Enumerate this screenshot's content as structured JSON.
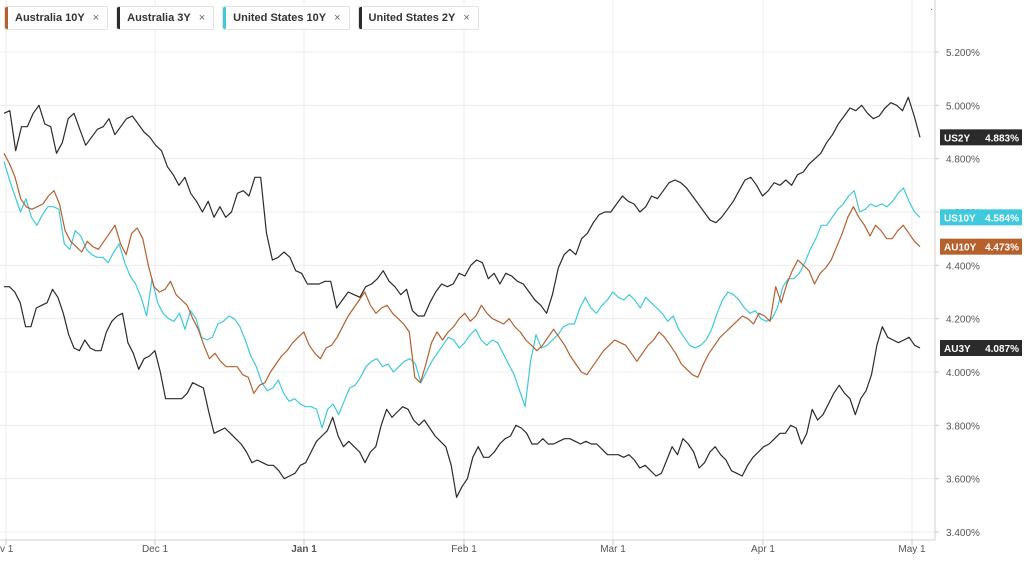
{
  "legend": [
    {
      "label": "Australia 10Y",
      "close": "×",
      "color": "#b5602d"
    },
    {
      "label": "Australia 3Y",
      "close": "×",
      "color": "#2b2b2b"
    },
    {
      "label": "United States 10Y",
      "close": "×",
      "color": "#3ec9dc"
    },
    {
      "label": "United States 2Y",
      "close": "×",
      "color": "#2b2b2b"
    }
  ],
  "chart_data": {
    "type": "line",
    "title": "",
    "xlabel": "",
    "ylabel": "",
    "x_ticks": [
      "v 1",
      "Dec 1",
      "Jan 1",
      "Feb 1",
      "Mar 1",
      "Apr 1",
      "May 1"
    ],
    "y_ticks": [
      "5.200%",
      "5.000%",
      "4.800%",
      "4.600%",
      "4.400%",
      "4.200%",
      "4.000%",
      "3.800%",
      "3.600%",
      "3.400%"
    ],
    "ylim": [
      3.4,
      5.4
    ],
    "x_range": [
      "Nov 1",
      "May 1"
    ],
    "grid": true,
    "legend_position": "top-left",
    "series": [
      {
        "name": "United States 2Y",
        "badge": "US2Y",
        "last_label": "4.883%",
        "color": "#2b2b2b",
        "values": [
          4.97,
          4.98,
          4.83,
          4.92,
          4.92,
          4.97,
          5.0,
          4.93,
          4.92,
          4.82,
          4.86,
          4.95,
          4.97,
          4.91,
          4.85,
          4.88,
          4.91,
          4.92,
          4.95,
          4.89,
          4.92,
          4.95,
          4.96,
          4.93,
          4.9,
          4.88,
          4.85,
          4.83,
          4.77,
          4.74,
          4.7,
          4.73,
          4.67,
          4.64,
          4.6,
          4.64,
          4.58,
          4.62,
          4.58,
          4.6,
          4.67,
          4.68,
          4.66,
          4.73,
          4.73,
          4.52,
          4.42,
          4.43,
          4.45,
          4.43,
          4.38,
          4.37,
          4.33,
          4.33,
          4.33,
          4.34,
          4.34,
          4.24,
          4.27,
          4.3,
          4.29,
          4.28,
          4.32,
          4.33,
          4.35,
          4.38,
          4.34,
          4.32,
          4.29,
          4.31,
          4.23,
          4.21,
          4.21,
          4.26,
          4.3,
          4.33,
          4.32,
          4.33,
          4.37,
          4.36,
          4.4,
          4.42,
          4.41,
          4.35,
          4.37,
          4.33,
          4.37,
          4.36,
          4.34,
          4.33,
          4.3,
          4.27,
          4.25,
          4.22,
          4.29,
          4.39,
          4.44,
          4.46,
          4.44,
          4.5,
          4.52,
          4.56,
          4.59,
          4.6,
          4.6,
          4.63,
          4.66,
          4.64,
          4.63,
          4.6,
          4.62,
          4.66,
          4.65,
          4.68,
          4.71,
          4.72,
          4.71,
          4.69,
          4.66,
          4.63,
          4.6,
          4.57,
          4.56,
          4.58,
          4.61,
          4.64,
          4.68,
          4.72,
          4.73,
          4.7,
          4.66,
          4.68,
          4.71,
          4.7,
          4.72,
          4.7,
          4.74,
          4.75,
          4.78,
          4.8,
          4.82,
          4.86,
          4.89,
          4.93,
          4.96,
          4.99,
          4.98,
          5.0,
          4.97,
          4.95,
          4.96,
          4.99,
          5.01,
          5.0,
          4.98,
          5.03,
          4.96,
          4.88
        ]
      },
      {
        "name": "United States 10Y",
        "badge": "US10Y",
        "last_label": "4.584%",
        "color": "#3ec9dc",
        "values": [
          4.79,
          4.72,
          4.66,
          4.6,
          4.65,
          4.58,
          4.55,
          4.59,
          4.62,
          4.62,
          4.61,
          4.48,
          4.46,
          4.53,
          4.51,
          4.46,
          4.44,
          4.43,
          4.43,
          4.41,
          4.45,
          4.48,
          4.41,
          4.36,
          4.33,
          4.28,
          4.21,
          4.35,
          4.26,
          4.22,
          4.2,
          4.19,
          4.22,
          4.16,
          4.23,
          4.2,
          4.13,
          4.12,
          4.13,
          4.18,
          4.19,
          4.21,
          4.2,
          4.17,
          4.12,
          4.06,
          4.02,
          3.96,
          3.93,
          3.94,
          3.97,
          3.92,
          3.89,
          3.9,
          3.88,
          3.87,
          3.87,
          3.86,
          3.79,
          3.86,
          3.88,
          3.84,
          3.89,
          3.94,
          3.95,
          3.98,
          4.02,
          4.04,
          4.05,
          4.02,
          4.03,
          4.0,
          4.02,
          4.04,
          4.05,
          4.03,
          3.96,
          4.0,
          4.04,
          4.07,
          4.1,
          4.13,
          4.12,
          4.09,
          4.11,
          4.14,
          4.16,
          4.12,
          4.1,
          4.12,
          4.11,
          4.07,
          4.03,
          3.99,
          3.93,
          3.87,
          4.04,
          4.14,
          4.09,
          4.1,
          4.12,
          4.14,
          4.17,
          4.18,
          4.18,
          4.24,
          4.28,
          4.24,
          4.22,
          4.25,
          4.27,
          4.3,
          4.28,
          4.27,
          4.29,
          4.27,
          4.24,
          4.28,
          4.26,
          4.24,
          4.22,
          4.19,
          4.21,
          4.16,
          4.13,
          4.1,
          4.09,
          4.1,
          4.12,
          4.16,
          4.22,
          4.27,
          4.3,
          4.29,
          4.27,
          4.24,
          4.22,
          4.23,
          4.2,
          4.19,
          4.2,
          4.24,
          4.32,
          4.35,
          4.35,
          4.37,
          4.41,
          4.46,
          4.5,
          4.55,
          4.55,
          4.58,
          4.61,
          4.63,
          4.66,
          4.68,
          4.6,
          4.61,
          4.63,
          4.62,
          4.63,
          4.62,
          4.64,
          4.67,
          4.69,
          4.64,
          4.6,
          4.58
        ]
      },
      {
        "name": "Australia 10Y",
        "badge": "AU10Y",
        "last_label": "4.473%",
        "color": "#b5602d",
        "values": [
          4.82,
          4.78,
          4.73,
          4.65,
          4.62,
          4.61,
          4.62,
          4.63,
          4.66,
          4.68,
          4.63,
          4.53,
          4.49,
          4.47,
          4.45,
          4.49,
          4.47,
          4.46,
          4.49,
          4.52,
          4.55,
          4.48,
          4.44,
          4.52,
          4.54,
          4.5,
          4.4,
          4.32,
          4.3,
          4.31,
          4.34,
          4.29,
          4.27,
          4.25,
          4.2,
          4.16,
          4.1,
          4.05,
          4.07,
          4.04,
          4.02,
          4.02,
          4.02,
          3.99,
          3.98,
          3.92,
          3.95,
          3.96,
          4.0,
          4.03,
          4.06,
          4.08,
          4.11,
          4.13,
          4.15,
          4.1,
          4.07,
          4.05,
          4.09,
          4.1,
          4.13,
          4.17,
          4.21,
          4.24,
          4.27,
          4.3,
          4.25,
          4.22,
          4.24,
          4.25,
          4.22,
          4.2,
          4.18,
          4.15,
          3.98,
          3.96,
          4.03,
          4.11,
          4.15,
          4.12,
          4.15,
          4.17,
          4.2,
          4.22,
          4.19,
          4.21,
          4.25,
          4.22,
          4.2,
          4.19,
          4.18,
          4.2,
          4.17,
          4.15,
          4.12,
          4.1,
          4.08,
          4.1,
          4.13,
          4.16,
          4.13,
          4.1,
          4.06,
          4.03,
          4.0,
          3.99,
          4.02,
          4.05,
          4.08,
          4.1,
          4.12,
          4.11,
          4.1,
          4.07,
          4.04,
          4.07,
          4.1,
          4.12,
          4.15,
          4.13,
          4.1,
          4.07,
          4.03,
          4.01,
          3.99,
          3.98,
          4.03,
          4.07,
          4.1,
          4.13,
          4.15,
          4.17,
          4.19,
          4.21,
          4.2,
          4.18,
          4.22,
          4.21,
          4.19,
          4.32,
          4.26,
          4.33,
          4.38,
          4.42,
          4.4,
          4.38,
          4.33,
          4.37,
          4.39,
          4.42,
          4.47,
          4.52,
          4.58,
          4.62,
          4.58,
          4.55,
          4.51,
          4.55,
          4.53,
          4.5,
          4.5,
          4.53,
          4.55,
          4.52,
          4.49,
          4.47
        ]
      },
      {
        "name": "Australia 3Y",
        "badge": "AU3Y",
        "last_label": "4.087%",
        "color": "#2b2b2b",
        "values": [
          4.32,
          4.32,
          4.3,
          4.26,
          4.17,
          4.17,
          4.24,
          4.25,
          4.26,
          4.31,
          4.28,
          4.22,
          4.14,
          4.09,
          4.08,
          4.12,
          4.09,
          4.08,
          4.08,
          4.15,
          4.19,
          4.21,
          4.22,
          4.11,
          4.07,
          4.01,
          4.05,
          4.06,
          4.08,
          4.0,
          3.9,
          3.9,
          3.9,
          3.9,
          3.92,
          3.96,
          3.95,
          3.94,
          3.85,
          3.77,
          3.78,
          3.79,
          3.77,
          3.75,
          3.73,
          3.7,
          3.66,
          3.67,
          3.66,
          3.65,
          3.65,
          3.63,
          3.6,
          3.61,
          3.62,
          3.65,
          3.66,
          3.7,
          3.74,
          3.76,
          3.78,
          3.83,
          3.76,
          3.72,
          3.74,
          3.72,
          3.7,
          3.66,
          3.7,
          3.72,
          3.8,
          3.86,
          3.83,
          3.85,
          3.87,
          3.86,
          3.82,
          3.8,
          3.82,
          3.79,
          3.76,
          3.74,
          3.72,
          3.65,
          3.53,
          3.57,
          3.6,
          3.68,
          3.72,
          3.68,
          3.68,
          3.7,
          3.73,
          3.75,
          3.76,
          3.8,
          3.79,
          3.77,
          3.73,
          3.73,
          3.75,
          3.73,
          3.73,
          3.74,
          3.75,
          3.75,
          3.74,
          3.73,
          3.74,
          3.73,
          3.73,
          3.71,
          3.69,
          3.69,
          3.69,
          3.68,
          3.69,
          3.67,
          3.64,
          3.65,
          3.63,
          3.61,
          3.62,
          3.67,
          3.72,
          3.69,
          3.75,
          3.73,
          3.7,
          3.64,
          3.66,
          3.7,
          3.72,
          3.69,
          3.67,
          3.63,
          3.62,
          3.61,
          3.65,
          3.68,
          3.7,
          3.72,
          3.73,
          3.75,
          3.77,
          3.77,
          3.8,
          3.79,
          3.73,
          3.77,
          3.86,
          3.82,
          3.84,
          3.88,
          3.92,
          3.95,
          3.92,
          3.9,
          3.84,
          3.9,
          3.93,
          3.99,
          4.1,
          4.17,
          4.13,
          4.12,
          4.11,
          4.12,
          4.13,
          4.1,
          4.09
        ]
      }
    ]
  }
}
